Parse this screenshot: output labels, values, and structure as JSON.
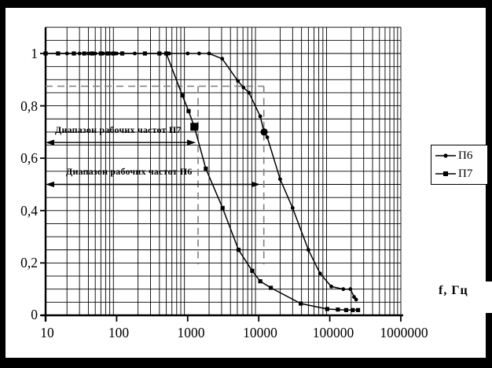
{
  "colors": {
    "ink": "#000000",
    "guide": "#7f7f7f",
    "background": "#ffffff",
    "frame": "#000000"
  },
  "legend": {
    "items": [
      {
        "label": "П6",
        "marker": "circle"
      },
      {
        "label": "П7",
        "marker": "square"
      }
    ]
  },
  "chart_data": {
    "type": "line",
    "title": "",
    "xlabel": "f, Гц",
    "ylabel": "",
    "x_scale": "log",
    "xlim": [
      10,
      1000000
    ],
    "ylim": [
      0,
      1.1
    ],
    "x_tick_labels": [
      "10",
      "100",
      "1000",
      "10000",
      "100000",
      "1000000"
    ],
    "y_tick_labels": [
      "1",
      "0,8",
      "0,6",
      "0,4",
      "0,2",
      "0"
    ],
    "y_tick_values": [
      1,
      0.8,
      0.6,
      0.4,
      0.2,
      0
    ],
    "grid": {
      "x": "log decades with 2-9 minors",
      "y": "every 0.05"
    },
    "legend_position": "right-outside",
    "series": [
      {
        "name": "П6",
        "marker": "circle",
        "points": [
          [
            10,
            1
          ],
          [
            20,
            1
          ],
          [
            30,
            1
          ],
          [
            40,
            1
          ],
          [
            50,
            1
          ],
          [
            65,
            1
          ],
          [
            80,
            1
          ],
          [
            100,
            1
          ],
          [
            180,
            1
          ],
          [
            550,
            1
          ],
          [
            1000,
            1
          ],
          [
            1450,
            1
          ],
          [
            2000,
            1
          ],
          [
            3060,
            0.98
          ],
          [
            5100,
            0.895
          ],
          [
            6100,
            0.87
          ],
          [
            7300,
            0.85
          ],
          [
            10500,
            0.76
          ],
          [
            11900,
            0.7
          ],
          [
            13200,
            0.68
          ],
          [
            20000,
            0.52
          ],
          [
            30000,
            0.41
          ],
          [
            50000,
            0.25
          ],
          [
            73000,
            0.16
          ],
          [
            105000,
            0.11
          ],
          [
            155000,
            0.1
          ],
          [
            195000,
            0.1
          ],
          [
            220000,
            0.07
          ],
          [
            235000,
            0.06
          ]
        ]
      },
      {
        "name": "П7",
        "marker": "square",
        "points": [
          [
            10,
            1
          ],
          [
            15,
            1
          ],
          [
            25,
            1
          ],
          [
            35,
            1
          ],
          [
            45,
            1
          ],
          [
            60,
            1
          ],
          [
            75,
            1
          ],
          [
            90,
            1
          ],
          [
            120,
            1
          ],
          [
            250,
            1
          ],
          [
            400,
            1
          ],
          [
            500,
            1
          ],
          [
            840,
            0.84
          ],
          [
            1030,
            0.78
          ],
          [
            1240,
            0.72
          ],
          [
            1800,
            0.56
          ],
          [
            3100,
            0.41
          ],
          [
            5200,
            0.25
          ],
          [
            8100,
            0.17
          ],
          [
            10500,
            0.13
          ],
          [
            14800,
            0.105
          ],
          [
            39000,
            0.045
          ],
          [
            92000,
            0.024
          ],
          [
            130000,
            0.022
          ],
          [
            170000,
            0.02
          ],
          [
            210000,
            0.02
          ],
          [
            250000,
            0.02
          ]
        ]
      }
    ],
    "emphasized_points": [
      {
        "series": "П7",
        "marker": "square",
        "f": 1240,
        "v": 0.72
      },
      {
        "series": "П6",
        "marker": "circle",
        "f": 11900,
        "v": 0.7
      }
    ],
    "cutoff_guides": {
      "level": 0.875,
      "vertical_f": [
        1400,
        11800
      ],
      "bottom_v": 0.195
    },
    "annotations": [
      {
        "text": "Диапазон рабочих частот П7",
        "arrow_from_f": 10,
        "arrow_to_f": 1300,
        "arrow_v": 0.66
      },
      {
        "text": "Диапазон рабочих частот П6",
        "arrow_from_f": 10,
        "arrow_to_f": 10500,
        "arrow_v": 0.5
      }
    ]
  }
}
